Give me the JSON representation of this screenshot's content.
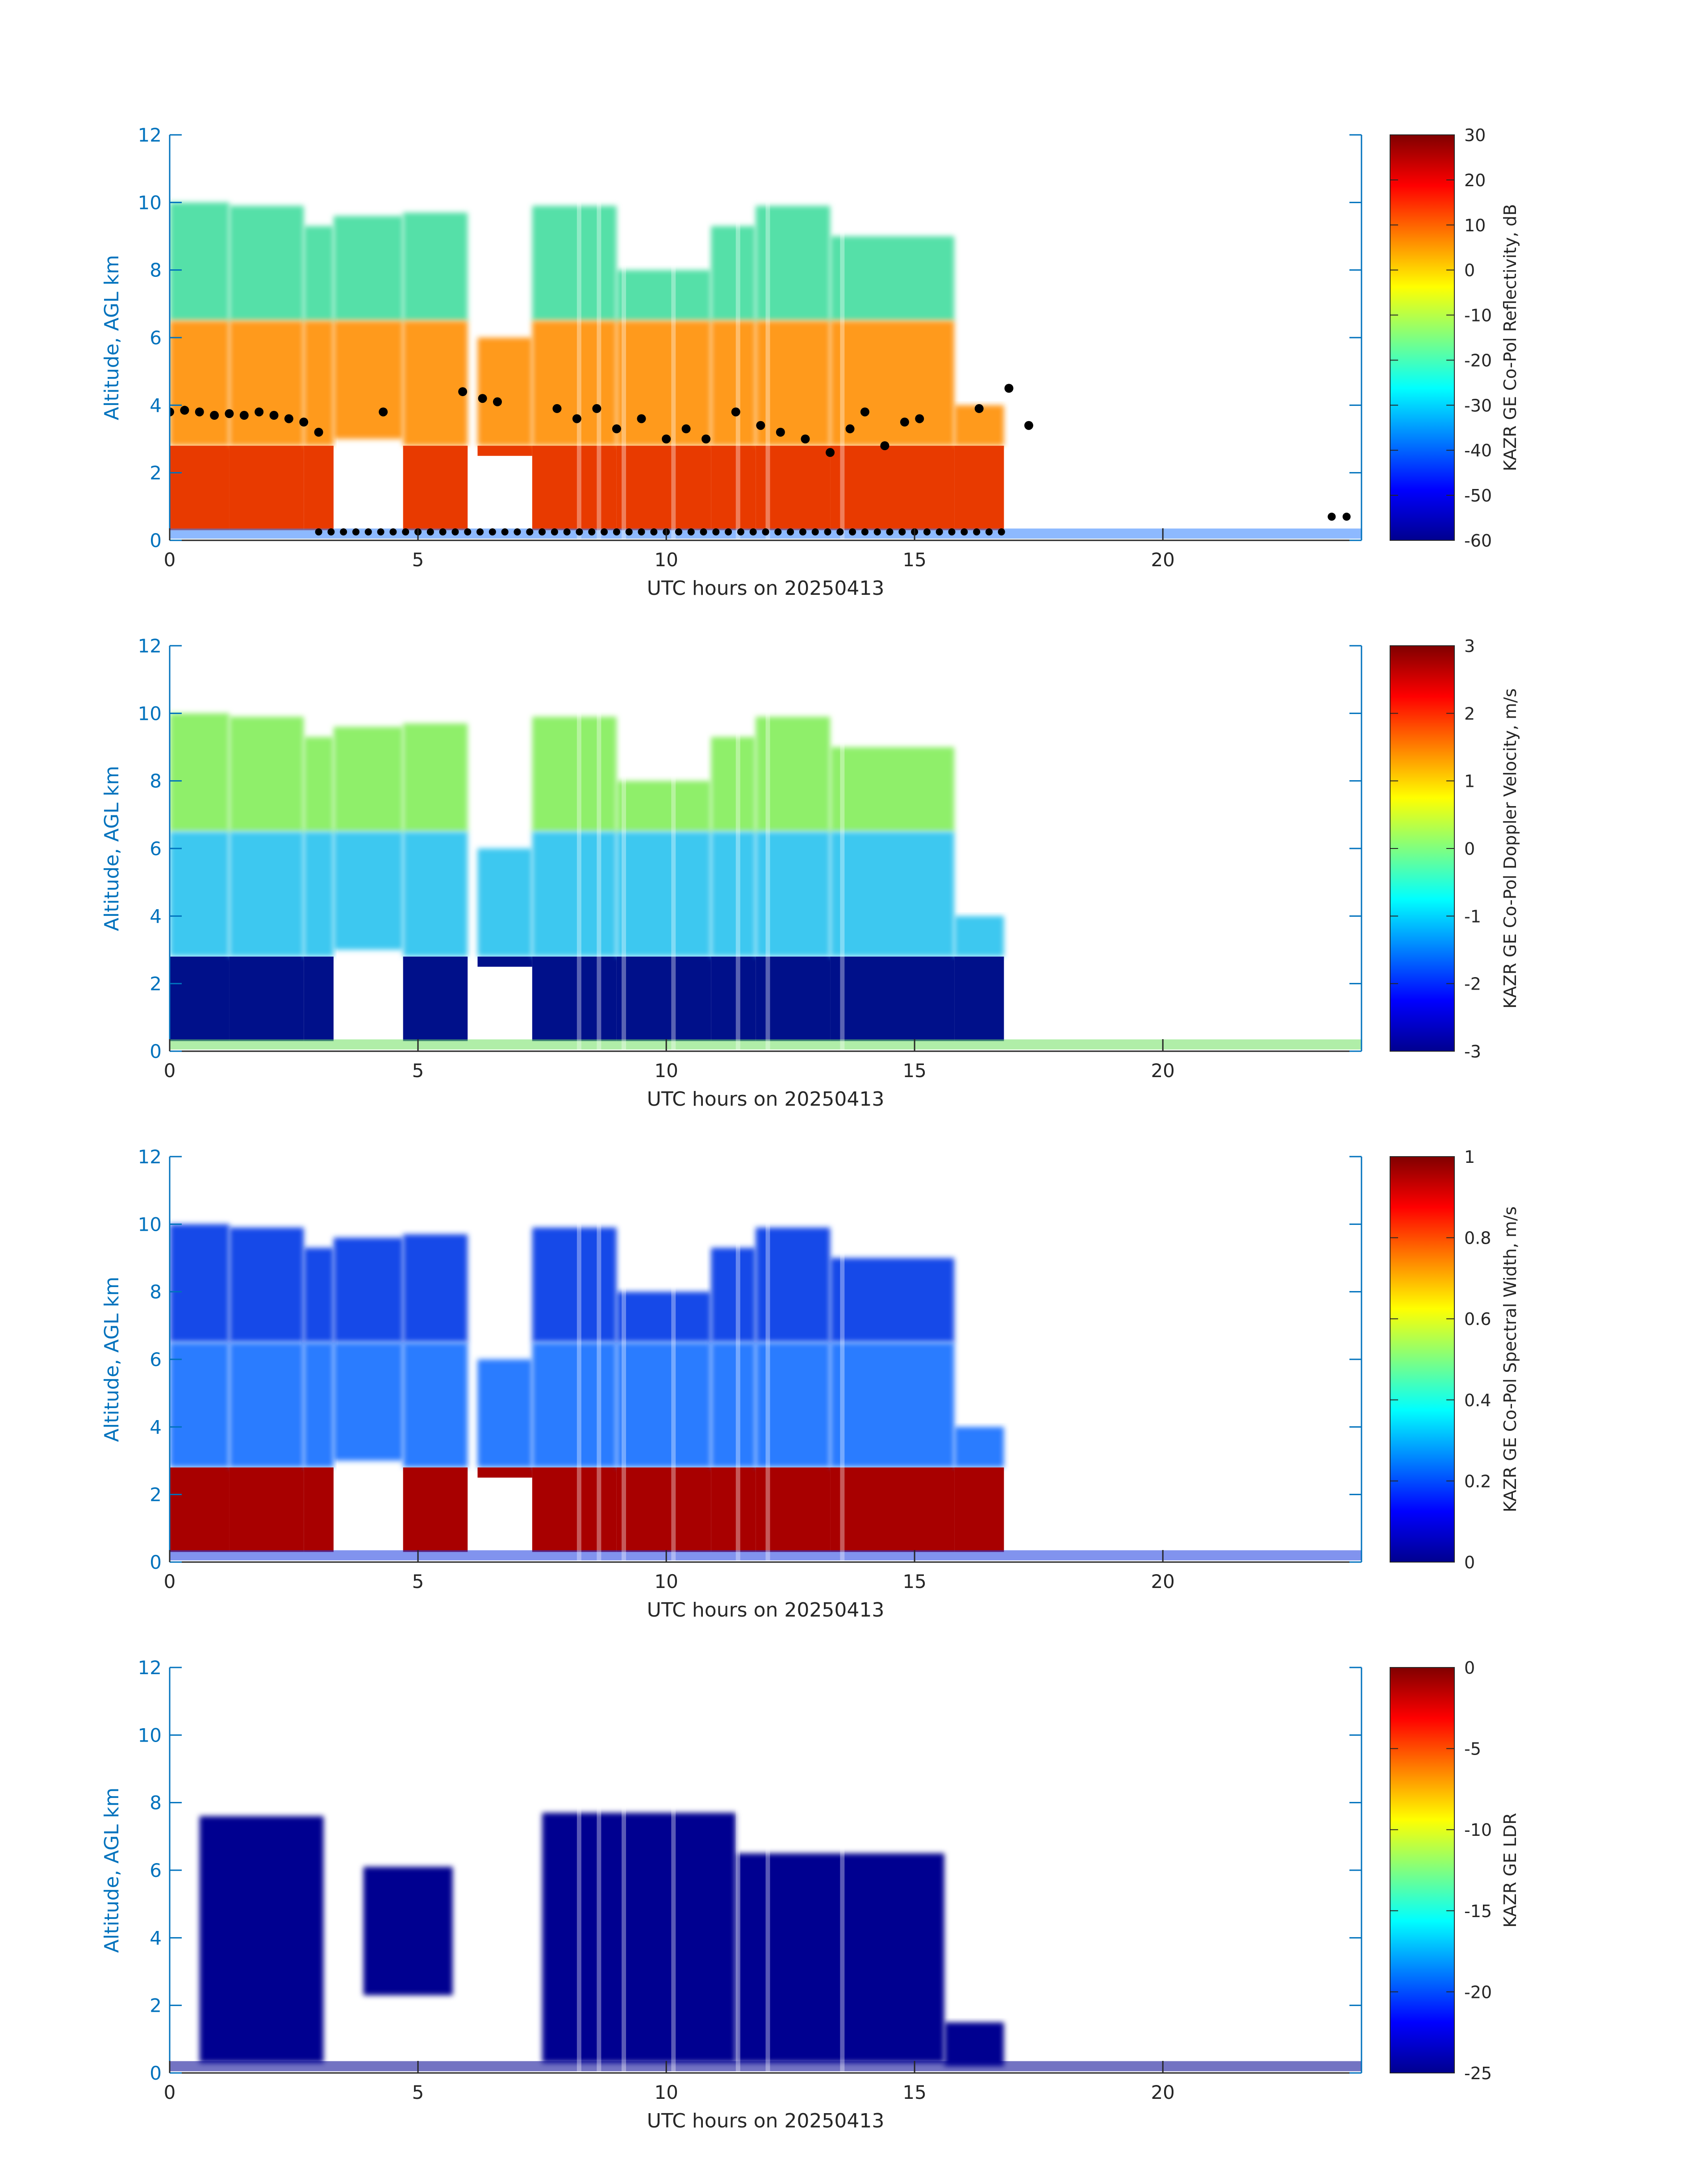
{
  "chart_data": [
    {
      "type": "heatmap",
      "title": "",
      "xlabel": "UTC hours on 20250413",
      "ylabel": "Altitude, AGL km",
      "xlim": [
        0,
        24
      ],
      "ylim": [
        0,
        12
      ],
      "x_ticks": [
        "0",
        "5",
        "10",
        "15",
        "20"
      ],
      "y_ticks": [
        "0",
        "2",
        "4",
        "6",
        "8",
        "10",
        "12"
      ],
      "colorbar": {
        "label": "KAZR GE Co-Pol Reflectivity, dB",
        "range": [
          -60,
          30
        ],
        "ticks": [
          "-60",
          "-50",
          "-40",
          "-30",
          "-20",
          "-10",
          "0",
          "10",
          "20",
          "30"
        ]
      },
      "overlay": "black dots (cloud base heights)"
    },
    {
      "type": "heatmap",
      "title": "",
      "xlabel": "UTC hours on 20250413",
      "ylabel": "Altitude, AGL km",
      "xlim": [
        0,
        24
      ],
      "ylim": [
        0,
        12
      ],
      "x_ticks": [
        "0",
        "5",
        "10",
        "15",
        "20"
      ],
      "y_ticks": [
        "0",
        "2",
        "4",
        "6",
        "8",
        "10",
        "12"
      ],
      "colorbar": {
        "label": "KAZR GE Co-Pol Doppler Velocity, m/s",
        "range": [
          -3,
          3
        ],
        "ticks": [
          "-3",
          "-2",
          "-1",
          "0",
          "1",
          "2",
          "3"
        ]
      }
    },
    {
      "type": "heatmap",
      "title": "",
      "xlabel": "UTC hours on 20250413",
      "ylabel": "Altitude, AGL km",
      "xlim": [
        0,
        24
      ],
      "ylim": [
        0,
        12
      ],
      "x_ticks": [
        "0",
        "5",
        "10",
        "15",
        "20"
      ],
      "y_ticks": [
        "0",
        "2",
        "4",
        "6",
        "8",
        "10",
        "12"
      ],
      "colorbar": {
        "label": "KAZR GE Co-Pol Spectral Width, m/s",
        "range": [
          0,
          1
        ],
        "ticks": [
          "0",
          "0.2",
          "0.4",
          "0.6",
          "0.8",
          "1"
        ]
      }
    },
    {
      "type": "heatmap",
      "title": "",
      "xlabel": "UTC hours on 20250413",
      "ylabel": "Altitude, AGL km",
      "xlim": [
        0,
        24
      ],
      "ylim": [
        0,
        12
      ],
      "x_ticks": [
        "0",
        "5",
        "10",
        "15",
        "20"
      ],
      "y_ticks": [
        "0",
        "2",
        "4",
        "6",
        "8",
        "10",
        "12"
      ],
      "colorbar": {
        "label": "KAZR GE LDR",
        "range": [
          -25,
          0
        ],
        "ticks": [
          "-25",
          "-20",
          "-15",
          "-10",
          "-5",
          "0"
        ]
      }
    }
  ],
  "colors": {
    "axis_left": "#0072BD",
    "axis_bottom": "#262626",
    "dots": "#000000"
  }
}
